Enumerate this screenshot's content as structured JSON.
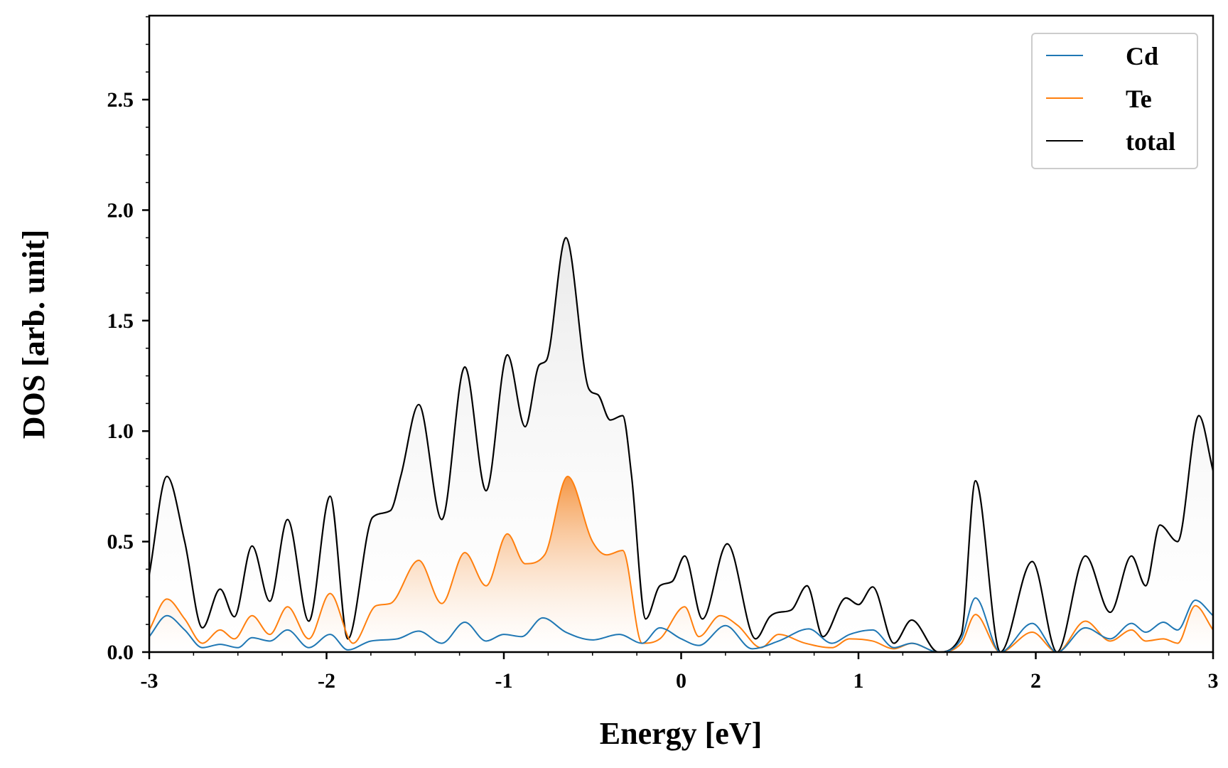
{
  "chart_data": {
    "type": "line",
    "title": "",
    "xlabel": "Energy [eV]",
    "ylabel": "DOS [arb. unit]",
    "xlim": [
      -3,
      3
    ],
    "ylim": [
      0,
      2.88
    ],
    "x_ticks": [
      -3,
      -2,
      -1,
      0,
      1,
      2,
      3
    ],
    "x_tick_labels": [
      "-3",
      "-2",
      "-1",
      "0",
      "1",
      "2",
      "3"
    ],
    "y_ticks": [
      0.0,
      0.5,
      1.0,
      1.5,
      2.0,
      2.5
    ],
    "y_tick_labels": [
      "0.0",
      "0.5",
      "1.0",
      "1.5",
      "2.0",
      "2.5"
    ],
    "grid": false,
    "legend_position": "top-right",
    "fill_under": [
      "total",
      "Te"
    ],
    "series": [
      {
        "name": "Cd",
        "color": "#1f77b4",
        "x": [
          -3.0,
          -2.9,
          -2.8,
          -2.7,
          -2.6,
          -2.5,
          -2.42,
          -2.32,
          -2.22,
          -2.1,
          -1.98,
          -1.88,
          -1.75,
          -1.6,
          -1.48,
          -1.35,
          -1.22,
          -1.1,
          -1.0,
          -0.9,
          -0.78,
          -0.65,
          -0.5,
          -0.35,
          -0.22,
          -0.12,
          0.0,
          0.1,
          0.25,
          0.4,
          0.55,
          0.72,
          0.85,
          0.95,
          1.08,
          1.2,
          1.3,
          1.45,
          1.58,
          1.66,
          1.8,
          1.98,
          2.12,
          2.28,
          2.42,
          2.54,
          2.62,
          2.72,
          2.8,
          2.9,
          3.0
        ],
        "y": [
          0.07,
          0.165,
          0.1,
          0.02,
          0.035,
          0.02,
          0.065,
          0.05,
          0.1,
          0.02,
          0.08,
          0.01,
          0.05,
          0.06,
          0.095,
          0.04,
          0.135,
          0.05,
          0.08,
          0.07,
          0.155,
          0.09,
          0.055,
          0.08,
          0.04,
          0.11,
          0.06,
          0.03,
          0.12,
          0.015,
          0.05,
          0.105,
          0.04,
          0.08,
          0.1,
          0.02,
          0.04,
          0.0,
          0.06,
          0.245,
          0.0,
          0.13,
          0.0,
          0.11,
          0.06,
          0.13,
          0.09,
          0.135,
          0.1,
          0.235,
          0.165
        ]
      },
      {
        "name": "Te",
        "color": "#ff7f0e",
        "x": [
          -3.0,
          -2.9,
          -2.8,
          -2.7,
          -2.6,
          -2.52,
          -2.42,
          -2.32,
          -2.22,
          -2.1,
          -1.98,
          -1.85,
          -1.72,
          -1.64,
          -1.48,
          -1.35,
          -1.22,
          -1.1,
          -0.98,
          -0.88,
          -0.77,
          -0.64,
          -0.5,
          -0.42,
          -0.33,
          -0.22,
          -0.12,
          0.02,
          0.1,
          0.22,
          0.32,
          0.45,
          0.55,
          0.7,
          0.85,
          0.95,
          1.08,
          1.2,
          1.3,
          1.45,
          1.58,
          1.66,
          1.8,
          1.98,
          2.12,
          2.28,
          2.42,
          2.54,
          2.62,
          2.72,
          2.8,
          2.9,
          3.0
        ],
        "y": [
          0.1,
          0.24,
          0.15,
          0.04,
          0.1,
          0.06,
          0.165,
          0.08,
          0.205,
          0.06,
          0.265,
          0.04,
          0.21,
          0.22,
          0.415,
          0.22,
          0.45,
          0.3,
          0.535,
          0.4,
          0.44,
          0.795,
          0.5,
          0.44,
          0.46,
          0.04,
          0.06,
          0.205,
          0.07,
          0.165,
          0.12,
          0.02,
          0.08,
          0.04,
          0.02,
          0.06,
          0.05,
          0.015,
          0.04,
          0.0,
          0.04,
          0.17,
          0.0,
          0.09,
          0.0,
          0.14,
          0.05,
          0.1,
          0.05,
          0.06,
          0.04,
          0.21,
          0.1
        ]
      },
      {
        "name": "total",
        "color": "#000000",
        "x": [
          -3.0,
          -2.9,
          -2.8,
          -2.7,
          -2.6,
          -2.52,
          -2.42,
          -2.32,
          -2.22,
          -2.1,
          -1.98,
          -1.88,
          -1.74,
          -1.64,
          -1.58,
          -1.48,
          -1.35,
          -1.22,
          -1.1,
          -0.98,
          -0.88,
          -0.8,
          -0.76,
          -0.65,
          -0.52,
          -0.47,
          -0.4,
          -0.33,
          -0.28,
          -0.2,
          -0.12,
          -0.05,
          0.02,
          0.12,
          0.26,
          0.42,
          0.5,
          0.55,
          0.62,
          0.71,
          0.8,
          0.93,
          1.0,
          1.08,
          1.2,
          1.3,
          1.45,
          1.58,
          1.66,
          1.8,
          1.98,
          2.12,
          2.28,
          2.42,
          2.54,
          2.62,
          2.7,
          2.8,
          2.92,
          3.0
        ],
        "y": [
          0.35,
          0.795,
          0.5,
          0.11,
          0.285,
          0.16,
          0.48,
          0.23,
          0.6,
          0.14,
          0.705,
          0.06,
          0.61,
          0.64,
          0.8,
          1.12,
          0.6,
          1.29,
          0.73,
          1.345,
          1.02,
          1.3,
          1.32,
          1.875,
          1.19,
          1.165,
          1.05,
          1.07,
          0.8,
          0.15,
          0.3,
          0.32,
          0.435,
          0.15,
          0.49,
          0.06,
          0.16,
          0.18,
          0.19,
          0.3,
          0.07,
          0.245,
          0.215,
          0.295,
          0.04,
          0.145,
          0.0,
          0.08,
          0.775,
          0.0,
          0.41,
          0.0,
          0.435,
          0.18,
          0.435,
          0.3,
          0.575,
          0.5,
          1.07,
          0.82
        ]
      }
    ]
  }
}
